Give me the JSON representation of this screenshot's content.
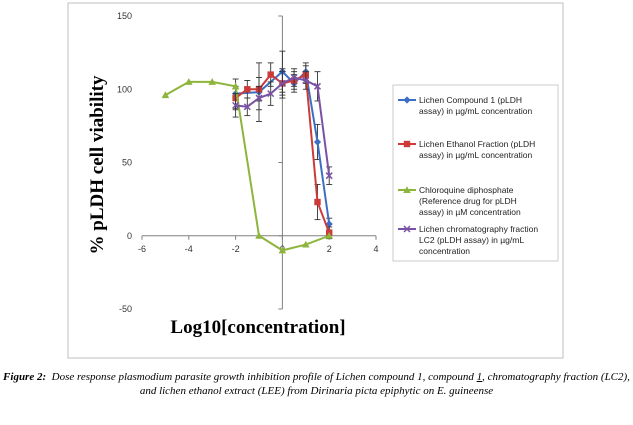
{
  "chart_data": {
    "type": "line",
    "xlabel": "Log10[concentration]",
    "ylabel": "% pLDH cell viability",
    "xlim": [
      -6,
      4
    ],
    "ylim": [
      -50,
      150
    ],
    "xticks": [
      -6,
      -4,
      -2,
      0,
      2,
      4
    ],
    "yticks": [
      -50,
      0,
      50,
      100,
      150
    ],
    "grid": false,
    "legend_position": "right",
    "series": [
      {
        "name": "Lichen Compound 1 (pLDH assay) in µg/mL concentration",
        "color": "#3c6fc4",
        "marker": "diamond",
        "x": [
          -2,
          -1,
          0,
          0.5,
          1,
          1.5,
          2
        ],
        "y": [
          97,
          98,
          112,
          104,
          112,
          64,
          8
        ],
        "err": [
          10,
          20,
          14,
          6,
          6,
          12,
          4
        ]
      },
      {
        "name": "Lichen Ethanol Fraction (pLDH assay) in µg/mL concentration",
        "color": "#cc3a3a",
        "marker": "square",
        "x": [
          -2,
          -1.5,
          -1,
          -0.5,
          0,
          0.5,
          1,
          1.5,
          2
        ],
        "y": [
          94,
          100,
          100,
          110,
          104,
          106,
          110,
          23,
          2
        ],
        "err": [
          8,
          6,
          8,
          8,
          8,
          6,
          6,
          12,
          4
        ]
      },
      {
        "name": "Chloroquine diphosphate (Reference drug for pLDH assay) in µM concentration",
        "color": "#8db53c",
        "marker": "triangle",
        "x": [
          -5,
          -4,
          -3,
          -2,
          -1,
          0,
          1,
          2
        ],
        "y": [
          96,
          105,
          105,
          102,
          0,
          -10,
          -6,
          0
        ],
        "err": [
          0,
          0,
          0,
          0,
          0,
          0,
          0,
          0
        ]
      },
      {
        "name": "Lichen chromatography fraction LC2 (pLDH assay) in µg/mL concentration",
        "color": "#7a52a5",
        "marker": "x",
        "x": [
          -2,
          -1.5,
          -1,
          -0.5,
          0,
          0.5,
          1,
          1.5,
          2
        ],
        "y": [
          89,
          88,
          94,
          97,
          104,
          108,
          106,
          102,
          41
        ],
        "err": [
          8,
          6,
          8,
          8,
          10,
          6,
          6,
          10,
          6
        ]
      }
    ]
  },
  "legend_lines": [
    [
      "Lichen Compound 1 (pLDH",
      "assay) in µg/mL concentration"
    ],
    [
      "Lichen Ethanol Fraction (pLDH",
      "assay) in µg/mL concentration"
    ],
    [
      "Chloroquine diphosphate",
      "(Reference drug for pLDH",
      "assay) in µM concentration"
    ],
    [
      "Lichen chromatography fraction",
      "LC2 (pLDH assay) in µg/mL",
      "concentration"
    ]
  ],
  "caption": {
    "label": "Figure 2:",
    "text_part1": "Dose response plasmodium parasite growth inhibition profile of Lichen compound 1, compound",
    "underlined": "1",
    "text_part2": ", chromatography fraction (LC2), and lichen ethanol extract (LEE) from Dirinaria picta epiphytic on E. guineense"
  }
}
